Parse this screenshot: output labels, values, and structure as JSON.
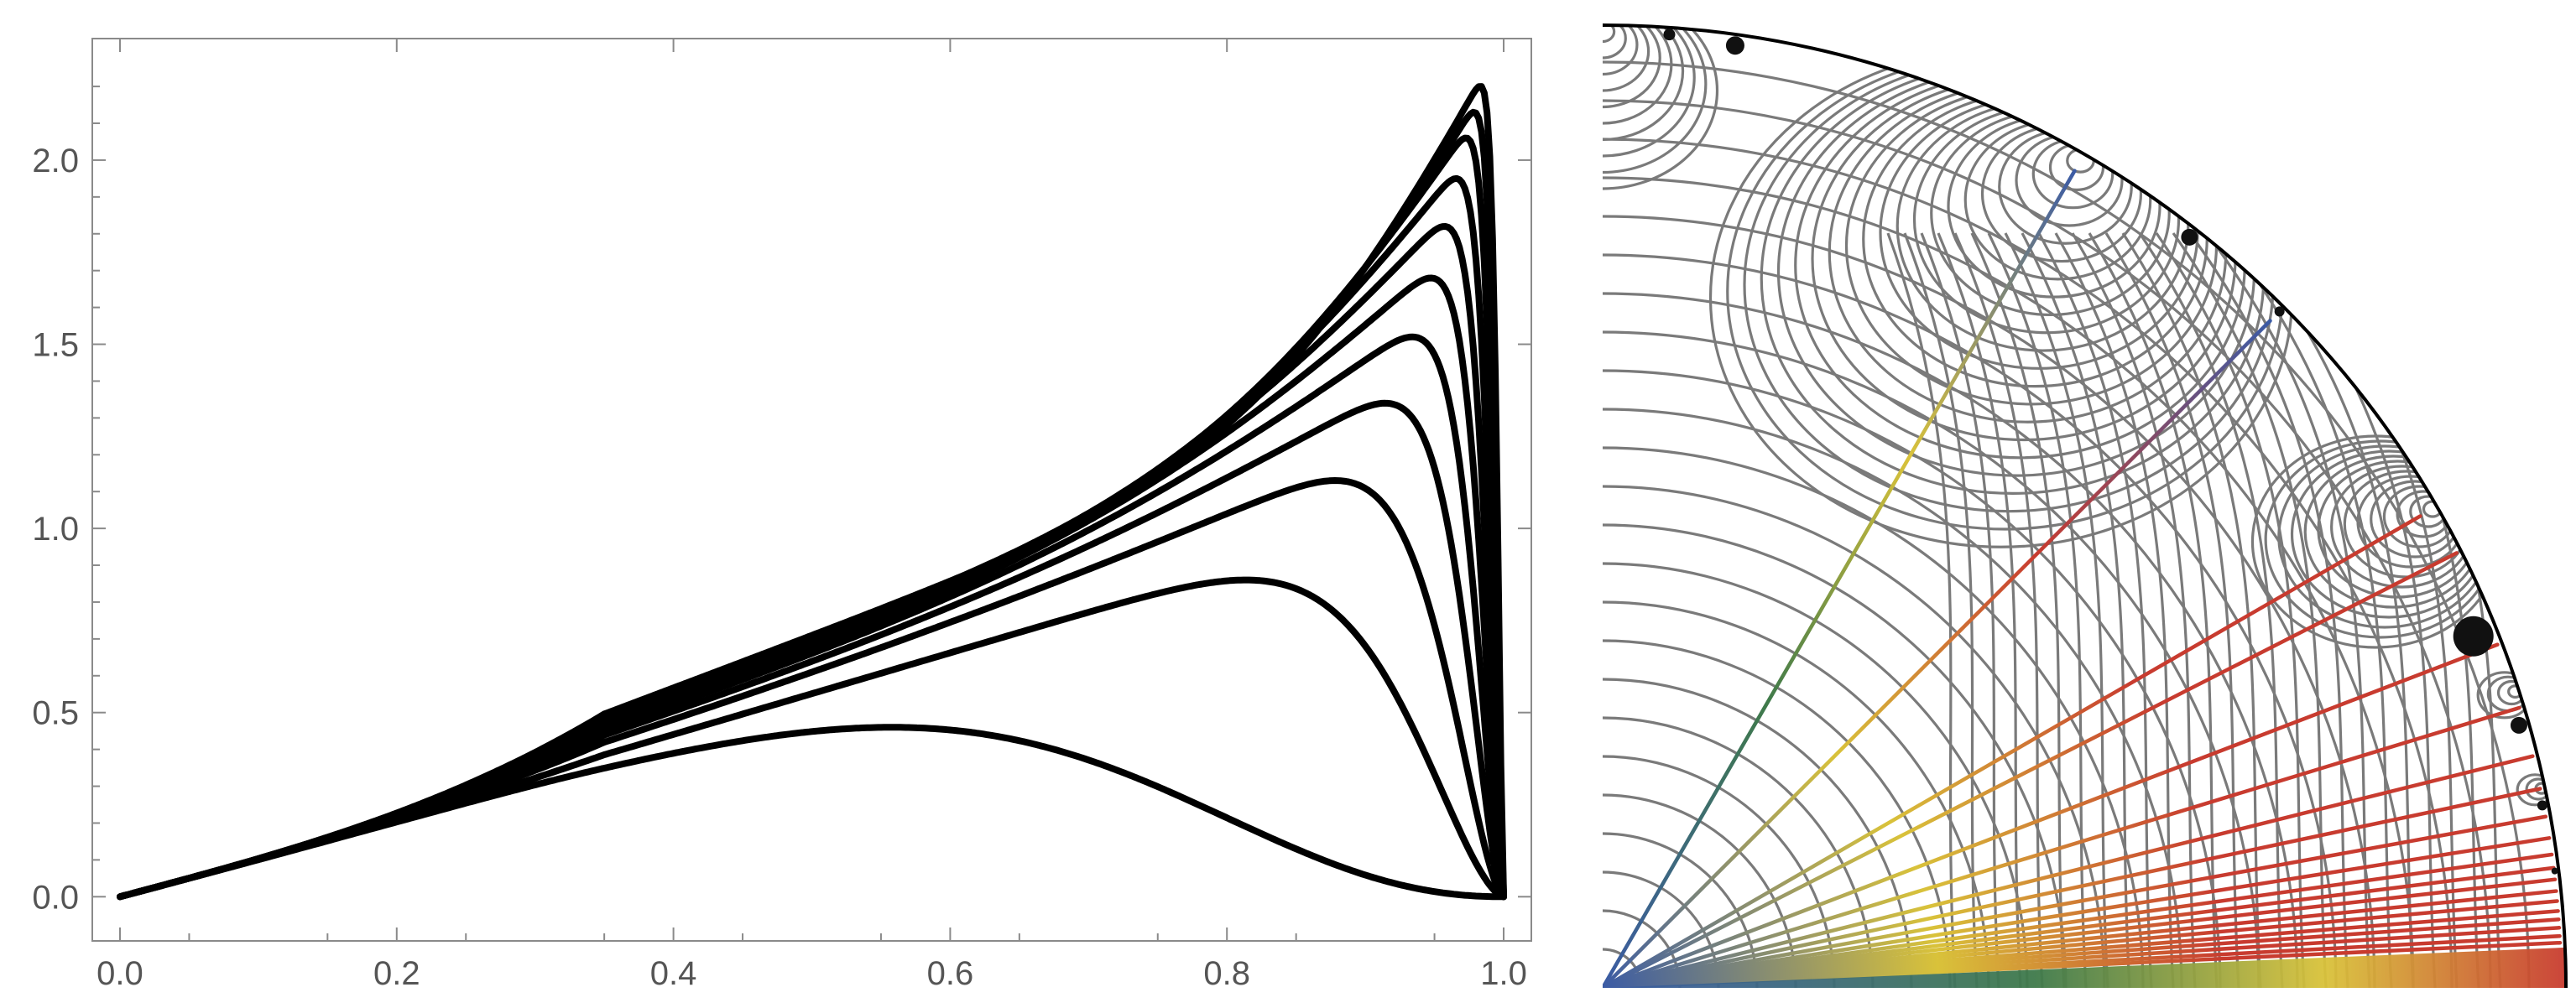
{
  "chart_data": [
    {
      "type": "line",
      "title": "",
      "xlabel": "",
      "ylabel": "",
      "xlim": [
        -0.02,
        1.02
      ],
      "ylim": [
        -0.12,
        2.33
      ],
      "grid": false,
      "x_ticks": [
        "0.0",
        "0.2",
        "0.4",
        "0.6",
        "0.8",
        "1.0"
      ],
      "y_ticks": [
        "0.0",
        "0.5",
        "1.0",
        "1.5",
        "2.0"
      ],
      "x_tick_values": [
        0,
        0.2,
        0.4,
        0.6,
        0.8,
        1.0
      ],
      "y_tick_values": [
        0,
        0.5,
        1.0,
        1.5,
        2.0
      ],
      "series_color": "#000000",
      "curve_count": 11,
      "curve_peaks": [
        {
          "x": 0.6,
          "y": 0.46
        },
        {
          "x": 0.85,
          "y": 0.86
        },
        {
          "x": 0.91,
          "y": 1.13
        },
        {
          "x": 0.94,
          "y": 1.34
        },
        {
          "x": 0.955,
          "y": 1.52
        },
        {
          "x": 0.965,
          "y": 1.68
        },
        {
          "x": 0.972,
          "y": 1.82
        },
        {
          "x": 0.978,
          "y": 1.95
        },
        {
          "x": 0.983,
          "y": 2.06
        },
        {
          "x": 0.987,
          "y": 2.13
        },
        {
          "x": 0.99,
          "y": 2.2
        }
      ]
    },
    {
      "type": "contour",
      "title": "",
      "region": "quarter-disk",
      "contour_color": "#7a7a7a",
      "ray_palette": [
        "#3b5ba5",
        "#3f7a4a",
        "#d9c23a",
        "#c83b2f"
      ]
    }
  ]
}
